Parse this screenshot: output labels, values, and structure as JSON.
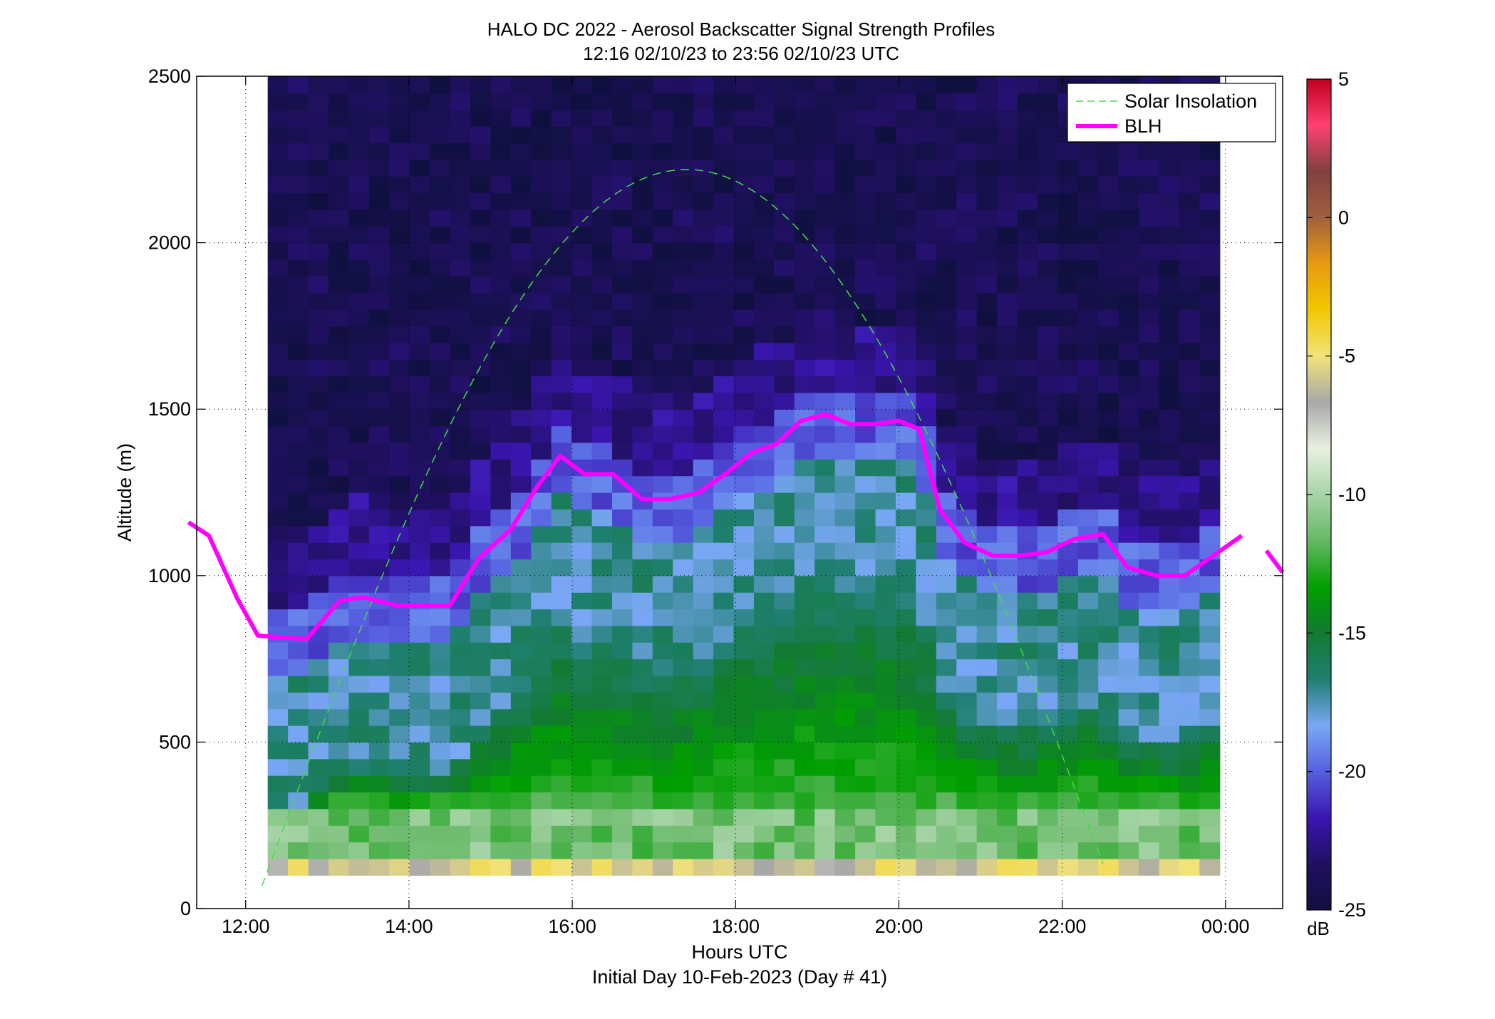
{
  "colors": {
    "blh_line": "#ff00ff",
    "solar_line": "#44dd44",
    "colormap_stops": [
      "#101040",
      "#201060",
      "#3a16b0",
      "#5560e0",
      "#7aa8f5",
      "#1f7f70",
      "#127a30",
      "#00a000",
      "#66b866",
      "#a8d4a8",
      "#e8f0e0",
      "#a8a8a8",
      "#f2e27a",
      "#f0c800",
      "#e89a10",
      "#a06040",
      "#804040",
      "#ff4070",
      "#c00020"
    ]
  },
  "chart_data": {
    "type": "heatmap",
    "title": "HALO DC 2022 - Aerosol Backscatter Signal Strength Profiles",
    "subtitle": "12:16 02/10/23 to 23:56 02/10/23  UTC",
    "xlabel": "Hours UTC",
    "xlabel2": "Initial Day 10-Feb-2023 (Day # 41)",
    "ylabel": "Altitude (m)",
    "xlim": [
      11.4,
      24.7
    ],
    "ylim": [
      0,
      2500
    ],
    "x_ticks": [
      12,
      14,
      16,
      18,
      20,
      22,
      24
    ],
    "x_tick_labels": [
      "12:00",
      "14:00",
      "16:00",
      "18:00",
      "20:00",
      "22:00",
      "00:00"
    ],
    "y_ticks": [
      0,
      500,
      1000,
      1500,
      2000,
      2500
    ],
    "y_tick_labels": [
      "0",
      "500",
      "1000",
      "1500",
      "2000",
      "2500"
    ],
    "grid": true,
    "legend": {
      "placement": "top-right",
      "entries": [
        "Solar Insolation",
        "BLH"
      ]
    },
    "colorbar": {
      "label": "dB",
      "range": [
        -25,
        5
      ],
      "ticks": [
        -25,
        -20,
        -15,
        -10,
        -5,
        0,
        5
      ],
      "tick_labels": [
        "-25",
        "-20",
        "-15",
        "-10",
        "-5",
        "0",
        "5"
      ]
    },
    "heatmap_extent": {
      "x": [
        12.27,
        23.93
      ],
      "y": [
        100,
        2500
      ]
    },
    "blh_profile": {
      "x": [
        11.3,
        11.55,
        11.9,
        12.15,
        12.4,
        12.75,
        13.15,
        13.45,
        13.85,
        14.2,
        14.5,
        14.85,
        15.25,
        15.55,
        15.85,
        16.15,
        16.5,
        16.85,
        17.2,
        17.55,
        17.9,
        18.2,
        18.5,
        18.8,
        19.1,
        19.4,
        19.7,
        20.0,
        20.25,
        20.5,
        20.8,
        21.15,
        21.5,
        21.8,
        22.15,
        22.5,
        22.8,
        23.15,
        23.5,
        23.85,
        24.2
      ],
      "y": [
        1160,
        1120,
        930,
        820,
        815,
        810,
        925,
        935,
        910,
        910,
        910,
        1050,
        1140,
        1260,
        1360,
        1305,
        1305,
        1230,
        1230,
        1250,
        1310,
        1370,
        1395,
        1465,
        1485,
        1455,
        1455,
        1465,
        1440,
        1200,
        1100,
        1060,
        1060,
        1070,
        1110,
        1125,
        1025,
        1000,
        1000,
        1060,
        1120
      ]
    },
    "blh_profile_tail": {
      "x": [
        24.5,
        24.7
      ],
      "y": [
        1075,
        1010
      ]
    },
    "solar_insolation_curve": {
      "peak_x": 17.4,
      "peak_y": 2220,
      "x_range": [
        12.2,
        22.5
      ]
    },
    "heatmap": {
      "rows_bottom_to_top": [
        100,
        150,
        200,
        250,
        300,
        350,
        400,
        450,
        500,
        550,
        600,
        650,
        700,
        750,
        800,
        850,
        900,
        950,
        1000,
        1050,
        1100,
        1150,
        1200,
        1250,
        1300,
        1350,
        1400,
        1450,
        1500,
        1550,
        1600,
        1650,
        1700,
        1750,
        1800,
        1850,
        1900,
        1950,
        2000,
        2050,
        2100,
        2150,
        2200,
        2250,
        2300,
        2350,
        2400,
        2450
      ],
      "row_height_m": 50
    }
  }
}
